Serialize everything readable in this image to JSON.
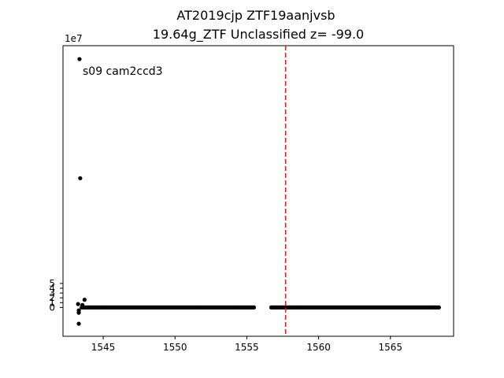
{
  "chart_data": {
    "type": "scatter",
    "title": "AT2019cjp  ZTF19aanjvsb",
    "subtitle": "19.64g_ZTF Unclassified z= -99.0",
    "xlabel": "",
    "ylabel": "",
    "xlim": [
      1542.2,
      1569.4
    ],
    "ylim": [
      -6.0,
      54.5
    ],
    "y_scale_label": "1e7",
    "xticks": [
      1545,
      1550,
      1555,
      1560,
      1565
    ],
    "yticks": [
      0,
      1,
      2,
      3,
      4,
      5
    ],
    "annotation": "s09 cam2ccd3",
    "vline": {
      "x": 1557.7,
      "color": "#d62728",
      "style": "dashed"
    },
    "point_color": "#000000",
    "outliers": [
      {
        "x": 1543.35,
        "y": 51.7
      },
      {
        "x": 1543.4,
        "y": 26.9
      },
      {
        "x": 1543.7,
        "y": 1.6
      },
      {
        "x": 1543.25,
        "y": 0.7
      },
      {
        "x": 1543.55,
        "y": 0.5
      },
      {
        "x": 1543.3,
        "y": -0.6
      },
      {
        "x": 1543.3,
        "y": -1.1
      },
      {
        "x": 1543.3,
        "y": -3.4
      }
    ],
    "baseline_segments": [
      {
        "x_start": 1543.5,
        "x_end": 1555.5,
        "y": 0.0,
        "step": 0.08
      },
      {
        "x_start": 1556.7,
        "x_end": 1568.4,
        "y": 0.0,
        "step": 0.08
      }
    ],
    "grid": false,
    "legend": "none"
  }
}
